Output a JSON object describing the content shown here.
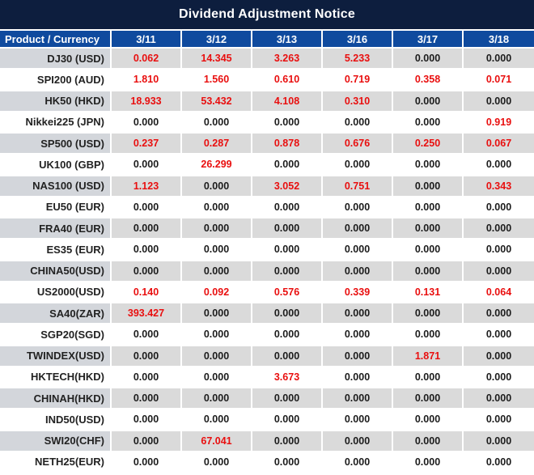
{
  "title": "Dividend Adjustment Notice",
  "header": {
    "product_label": "Product / Currency",
    "dates": [
      "3/11",
      "3/12",
      "3/13",
      "3/16",
      "3/17",
      "3/18"
    ]
  },
  "rows": [
    {
      "product": "DJ30 (USD)",
      "values": [
        "0.062",
        "14.345",
        "3.263",
        "5.233",
        "0.000",
        "0.000"
      ]
    },
    {
      "product": "SPI200 (AUD)",
      "values": [
        "1.810",
        "1.560",
        "0.610",
        "0.719",
        "0.358",
        "0.071"
      ]
    },
    {
      "product": "HK50 (HKD)",
      "values": [
        "18.933",
        "53.432",
        "4.108",
        "0.310",
        "0.000",
        "0.000"
      ]
    },
    {
      "product": "Nikkei225 (JPN)",
      "values": [
        "0.000",
        "0.000",
        "0.000",
        "0.000",
        "0.000",
        "0.919"
      ]
    },
    {
      "product": "SP500 (USD)",
      "values": [
        "0.237",
        "0.287",
        "0.878",
        "0.676",
        "0.250",
        "0.067"
      ]
    },
    {
      "product": "UK100 (GBP)",
      "values": [
        "0.000",
        "26.299",
        "0.000",
        "0.000",
        "0.000",
        "0.000"
      ]
    },
    {
      "product": "NAS100 (USD)",
      "values": [
        "1.123",
        "0.000",
        "3.052",
        "0.751",
        "0.000",
        "0.343"
      ]
    },
    {
      "product": "EU50 (EUR)",
      "values": [
        "0.000",
        "0.000",
        "0.000",
        "0.000",
        "0.000",
        "0.000"
      ]
    },
    {
      "product": "FRA40 (EUR)",
      "values": [
        "0.000",
        "0.000",
        "0.000",
        "0.000",
        "0.000",
        "0.000"
      ]
    },
    {
      "product": "ES35 (EUR)",
      "values": [
        "0.000",
        "0.000",
        "0.000",
        "0.000",
        "0.000",
        "0.000"
      ]
    },
    {
      "product": "CHINA50(USD)",
      "values": [
        "0.000",
        "0.000",
        "0.000",
        "0.000",
        "0.000",
        "0.000"
      ]
    },
    {
      "product": "US2000(USD)",
      "values": [
        "0.140",
        "0.092",
        "0.576",
        "0.339",
        "0.131",
        "0.064"
      ]
    },
    {
      "product": "SA40(ZAR)",
      "values": [
        "393.427",
        "0.000",
        "0.000",
        "0.000",
        "0.000",
        "0.000"
      ]
    },
    {
      "product": "SGP20(SGD)",
      "values": [
        "0.000",
        "0.000",
        "0.000",
        "0.000",
        "0.000",
        "0.000"
      ]
    },
    {
      "product": "TWINDEX(USD)",
      "values": [
        "0.000",
        "0.000",
        "0.000",
        "0.000",
        "1.871",
        "0.000"
      ]
    },
    {
      "product": "HKTECH(HKD)",
      "values": [
        "0.000",
        "0.000",
        "3.673",
        "0.000",
        "0.000",
        "0.000"
      ]
    },
    {
      "product": "CHINAH(HKD)",
      "values": [
        "0.000",
        "0.000",
        "0.000",
        "0.000",
        "0.000",
        "0.000"
      ]
    },
    {
      "product": "IND50(USD)",
      "values": [
        "0.000",
        "0.000",
        "0.000",
        "0.000",
        "0.000",
        "0.000"
      ]
    },
    {
      "product": "SWI20(CHF)",
      "values": [
        "0.000",
        "67.041",
        "0.000",
        "0.000",
        "0.000",
        "0.000"
      ]
    },
    {
      "product": "NETH25(EUR)",
      "values": [
        "0.000",
        "0.000",
        "0.000",
        "0.000",
        "0.000",
        "0.000"
      ]
    }
  ],
  "colors": {
    "title_bar_bg": "#0d1e3e",
    "header_bg": "#0f4a9e",
    "row_gray": "#dadada",
    "row_gray_product": "#d3d6db",
    "row_white": "#ffffff",
    "value_zero": "#1c1c1c",
    "value_nonzero": "#e90f0f",
    "separator": "#ffffff"
  },
  "value_rule": "values equal to 0.000 render black, all other values render red"
}
